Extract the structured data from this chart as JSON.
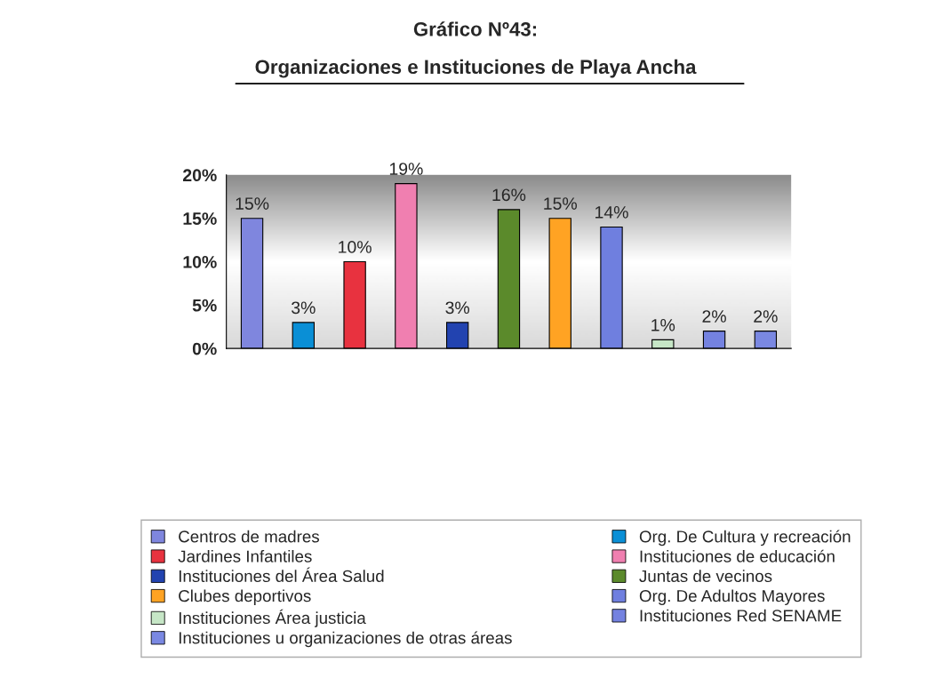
{
  "chart_data": {
    "type": "bar",
    "title": "Gráfico Nº43:",
    "subtitle": "Organizaciones e Instituciones de Playa Ancha",
    "categories": [
      null,
      null,
      null,
      null,
      null,
      null,
      null,
      null,
      null,
      null,
      null
    ],
    "series": [
      {
        "name": "Centros de madres",
        "color": "#7f86de",
        "values": [
          15,
          null,
          null,
          null,
          null,
          null,
          null,
          null,
          null,
          null,
          null
        ],
        "value_labels": [
          "15%",
          null,
          null,
          null,
          null,
          null,
          null,
          null,
          null,
          null,
          null
        ]
      },
      {
        "name": "Org. De Cultura y recreación",
        "color": "#0a8fd6",
        "values": [
          null,
          3,
          null,
          null,
          null,
          null,
          null,
          null,
          null,
          null,
          null
        ],
        "value_labels": [
          null,
          "3%",
          null,
          null,
          null,
          null,
          null,
          null,
          null,
          null,
          null
        ]
      },
      {
        "name": "Jardines Infantiles",
        "color": "#e8323f",
        "values": [
          null,
          null,
          10,
          null,
          null,
          null,
          null,
          null,
          null,
          null,
          null
        ],
        "value_labels": [
          null,
          null,
          "10%",
          null,
          null,
          null,
          null,
          null,
          null,
          null,
          null
        ]
      },
      {
        "name": "Instituciones de educación",
        "color": "#f07fb0",
        "values": [
          null,
          null,
          null,
          19,
          null,
          null,
          null,
          null,
          null,
          null,
          null
        ],
        "value_labels": [
          null,
          null,
          null,
          "19%",
          null,
          null,
          null,
          null,
          null,
          null,
          null
        ]
      },
      {
        "name": "Instituciones del Área Salud",
        "color": "#2243b0",
        "values": [
          null,
          null,
          null,
          null,
          3,
          null,
          null,
          null,
          null,
          null,
          null
        ],
        "value_labels": [
          null,
          null,
          null,
          null,
          "3%",
          null,
          null,
          null,
          null,
          null,
          null
        ]
      },
      {
        "name": "Juntas de vecinos",
        "color": "#5b8a2b",
        "values": [
          null,
          null,
          null,
          null,
          null,
          16,
          null,
          null,
          null,
          null,
          null
        ],
        "value_labels": [
          null,
          null,
          null,
          null,
          null,
          "16%",
          null,
          null,
          null,
          null,
          null
        ]
      },
      {
        "name": "Clubes deportivos",
        "color": "#ffa323",
        "values": [
          null,
          null,
          null,
          null,
          null,
          null,
          15,
          null,
          null,
          null,
          null
        ],
        "value_labels": [
          null,
          null,
          null,
          null,
          null,
          null,
          "15%",
          null,
          null,
          null,
          null
        ]
      },
      {
        "name": "Org. De Adultos Mayores",
        "color": "#6f7fdf",
        "values": [
          null,
          null,
          null,
          null,
          null,
          null,
          null,
          14,
          null,
          null,
          null
        ],
        "value_labels": [
          null,
          null,
          null,
          null,
          null,
          null,
          null,
          "14%",
          null,
          null,
          null
        ]
      },
      {
        "name": "Instituciones Área justicia",
        "color": "#c6e6c6",
        "values": [
          null,
          null,
          null,
          null,
          null,
          null,
          null,
          null,
          1,
          null,
          null
        ],
        "value_labels": [
          null,
          null,
          null,
          null,
          null,
          null,
          null,
          null,
          "1%",
          null,
          null
        ]
      },
      {
        "name": "Instituciones Red SENAME",
        "color": "#7482e0",
        "values": [
          null,
          null,
          null,
          null,
          null,
          null,
          null,
          null,
          null,
          2,
          null
        ],
        "value_labels": [
          null,
          null,
          null,
          null,
          null,
          null,
          null,
          null,
          null,
          "2%",
          null
        ]
      },
      {
        "name": "Instituciones u organizaciones de otras áreas",
        "color": "#7a88e2",
        "values": [
          null,
          null,
          null,
          null,
          null,
          null,
          null,
          null,
          null,
          null,
          2
        ],
        "value_labels": [
          null,
          null,
          null,
          null,
          null,
          null,
          null,
          null,
          null,
          null,
          "2%"
        ]
      }
    ],
    "ylim": [
      0,
      20
    ],
    "yticks": [
      {
        "value": 0,
        "label": "0%"
      },
      {
        "value": 5,
        "label": "5%"
      },
      {
        "value": 10,
        "label": "10%"
      },
      {
        "value": 15,
        "label": "15%"
      },
      {
        "value": 20,
        "label": "20%"
      }
    ],
    "legend": "bottom",
    "grid": false
  }
}
